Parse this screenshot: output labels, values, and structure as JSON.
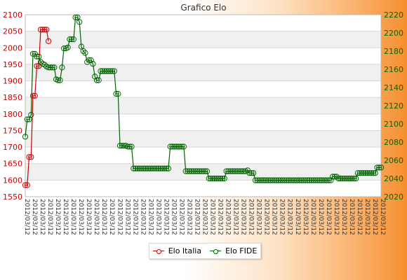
{
  "chart_data": {
    "type": "line",
    "title": "Grafico Elo",
    "left_axis": {
      "min": 1550,
      "max": 2100,
      "step": 50,
      "color": "#cc0000"
    },
    "right_axis": {
      "min": 2020,
      "max": 2220,
      "step": 20,
      "color": "#006600"
    },
    "x_tick_text": "2012/03/12",
    "grid": true,
    "legend_position": "bottom-center",
    "series": [
      {
        "name": "Elo Italia",
        "axis": "left",
        "color": "#cc0000",
        "values": [
          1585,
          1585,
          1670,
          1670,
          1855,
          1855,
          1945,
          1945,
          2055,
          2055,
          2055,
          2055,
          2020
        ]
      },
      {
        "name": "Elo FIDE",
        "axis": "right",
        "color": "#006600",
        "values": [
          2086,
          2105,
          2105,
          2110,
          2177,
          2177,
          2174,
          2174,
          2168,
          2166,
          2165,
          2163,
          2162,
          2162,
          2162,
          2162,
          2149,
          2148,
          2148,
          2162,
          2183,
          2183,
          2184,
          2193,
          2193,
          2193,
          2217,
          2217,
          2212,
          2185,
          2180,
          2178,
          2168,
          2170,
          2170,
          2166,
          2152,
          2148,
          2148,
          2158,
          2158,
          2158,
          2158,
          2158,
          2158,
          2158,
          2158,
          2133,
          2133,
          2076,
          2076,
          2076,
          2076,
          2075,
          2075,
          2075,
          2051,
          2051,
          2051,
          2051,
          2051,
          2051,
          2051,
          2051,
          2051,
          2051,
          2051,
          2051,
          2051,
          2051,
          2051,
          2051,
          2051,
          2051,
          2051,
          2075,
          2075,
          2075,
          2075,
          2075,
          2075,
          2075,
          2075,
          2048,
          2048,
          2048,
          2048,
          2048,
          2048,
          2048,
          2048,
          2048,
          2048,
          2048,
          2048,
          2040,
          2040,
          2040,
          2040,
          2040,
          2040,
          2040,
          2040,
          2040,
          2048,
          2048,
          2048,
          2048,
          2048,
          2048,
          2048,
          2048,
          2048,
          2048,
          2048,
          2049,
          2046,
          2046,
          2046,
          2038,
          2038,
          2038,
          2038,
          2038,
          2038,
          2038,
          2038,
          2038,
          2038,
          2038,
          2038,
          2038,
          2038,
          2038,
          2038,
          2038,
          2038,
          2038,
          2038,
          2038,
          2038,
          2038,
          2038,
          2038,
          2038,
          2038,
          2038,
          2038,
          2038,
          2038,
          2038,
          2038,
          2038,
          2038,
          2038,
          2038,
          2038,
          2038,
          2038,
          2042,
          2042,
          2042,
          2040,
          2040,
          2040,
          2040,
          2040,
          2040,
          2040,
          2040,
          2040,
          2040,
          2046,
          2046,
          2046,
          2046,
          2046,
          2046,
          2046,
          2046,
          2046,
          2046,
          2052,
          2052,
          2052
        ]
      }
    ]
  }
}
